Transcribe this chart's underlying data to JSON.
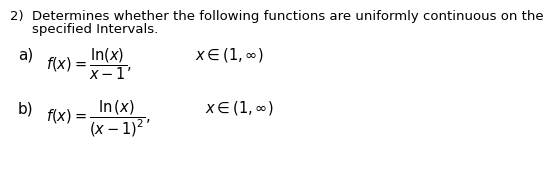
{
  "background_color": "#ffffff",
  "text_color": "#000000",
  "header_number": "2)",
  "header_text": "Determines whether the following functions are uniformly continuous on the",
  "header_text2": "specified Intervals.",
  "part_a_label": "a)",
  "part_a_formula": "$f(x) = \\dfrac{\\mathrm{ln}(x)}{x-1},$",
  "part_a_domain": "$x \\in (1, \\infty)$",
  "part_b_label": "b)",
  "part_b_formula": "$f(x) = \\dfrac{\\mathrm{ln}\\,(x)}{(x-1)^2},$",
  "part_b_domain": "$x \\in (1, \\infty)$",
  "header_fs": 9.5,
  "formula_fs": 10.5,
  "label_fs": 11.0
}
